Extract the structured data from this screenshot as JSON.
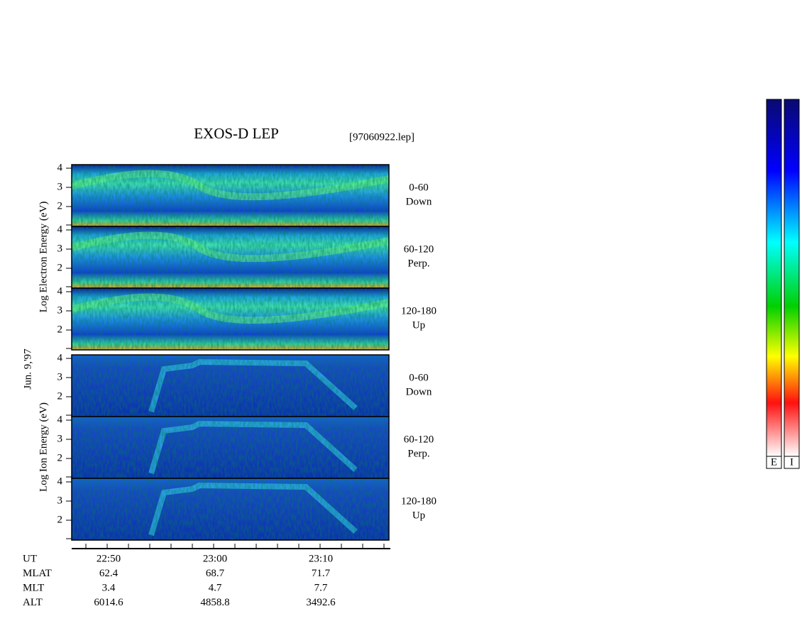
{
  "header": {
    "title": "EXOS-D LEP",
    "file": "[97060922.lep]"
  },
  "date": "Jun. 9,'97",
  "electron": {
    "axis_label": "Log  Electron  Energy (eV)",
    "panels": [
      {
        "ticks": [
          "4",
          "3",
          "2"
        ],
        "angle": "0-60",
        "direction": "Down"
      },
      {
        "ticks": [
          "4",
          "3",
          "2"
        ],
        "angle": "60-120",
        "direction": "Perp."
      },
      {
        "ticks": [
          "4",
          "3",
          "2"
        ],
        "angle": "120-180",
        "direction": "Up"
      }
    ]
  },
  "ion": {
    "axis_label": "Log  Ion  Energy (eV)",
    "panels": [
      {
        "ticks": [
          "4",
          "3",
          "2"
        ],
        "angle": "0-60",
        "direction": "Down"
      },
      {
        "ticks": [
          "4",
          "3",
          "2"
        ],
        "angle": "60-120",
        "direction": "Perp."
      },
      {
        "ticks": [
          "4",
          "3",
          "2"
        ],
        "angle": "120-180",
        "direction": "Up"
      }
    ]
  },
  "orbit": {
    "rows": [
      {
        "name": "UT",
        "values": [
          "22:50",
          "23:00",
          "23:10"
        ]
      },
      {
        "name": "MLAT",
        "values": [
          "62.4",
          "68.7",
          "71.7"
        ]
      },
      {
        "name": "MLT",
        "values": [
          "3.4",
          "4.7",
          "7.7"
        ]
      },
      {
        "name": "ALT",
        "values": [
          "6014.6",
          "4858.8",
          "3492.6"
        ]
      }
    ]
  },
  "colorbars": [
    "E",
    "I"
  ]
}
